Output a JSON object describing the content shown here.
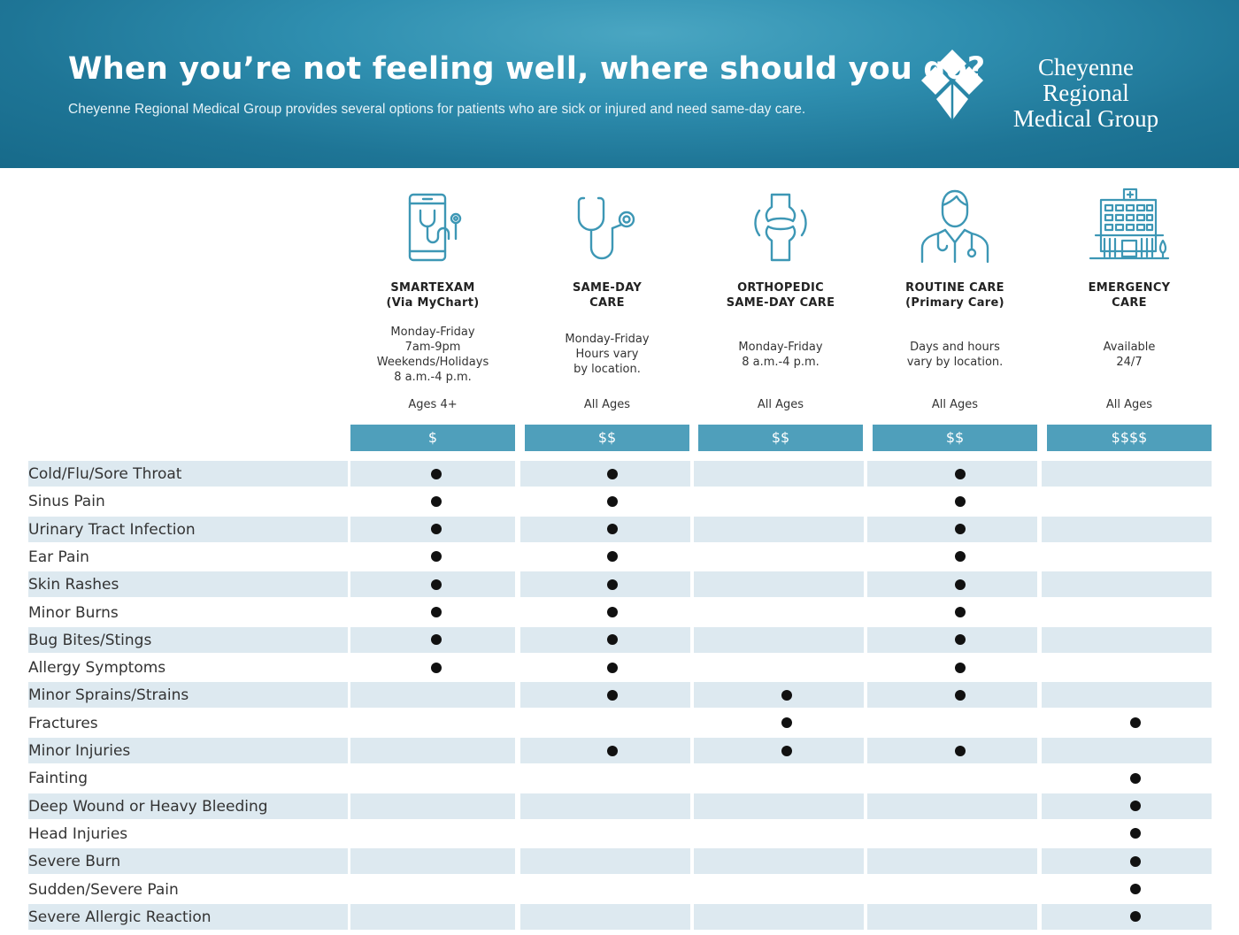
{
  "header": {
    "title": "When you’re not feeling well, where should you go?",
    "subtitle": "Cheyenne Regional Medical Group provides several options for patients who are sick or injured and need same-day care.",
    "logo_line1": "Cheyenne Regional",
    "logo_line2": "Medical Group"
  },
  "columns": [
    {
      "icon": "smartphone-stethoscope-icon",
      "name_line1": "SMARTEXAM",
      "name_line2": "(Via MyChart)",
      "hours": [
        "Monday-Friday",
        "7am-9pm",
        "Weekends/Holidays",
        "8 a.m.-4 p.m."
      ],
      "ages": "Ages 4+",
      "cost": "$"
    },
    {
      "icon": "stethoscope-icon",
      "name_line1": "SAME-DAY",
      "name_line2": "CARE",
      "hours": [
        "Monday-Friday",
        "Hours vary",
        "by location."
      ],
      "ages": "All Ages",
      "cost": "$$"
    },
    {
      "icon": "knee-joint-icon",
      "name_line1": "ORTHOPEDIC",
      "name_line2": "SAME-DAY CARE",
      "hours": [
        "Monday-Friday",
        "8 a.m.-4 p.m."
      ],
      "ages": "All Ages",
      "cost": "$$"
    },
    {
      "icon": "doctor-icon",
      "name_line1": "ROUTINE CARE",
      "name_line2": "(Primary Care)",
      "hours": [
        "Days and hours",
        "vary by location."
      ],
      "ages": "All Ages",
      "cost": "$$"
    },
    {
      "icon": "hospital-icon",
      "name_line1": "EMERGENCY",
      "name_line2": "CARE",
      "hours": [
        "Available",
        "24/7"
      ],
      "ages": "All Ages",
      "cost": "$$$$"
    }
  ],
  "conditions": [
    {
      "label": "Cold/Flu/Sore Throat",
      "marks": [
        true,
        true,
        false,
        true,
        false
      ]
    },
    {
      "label": "Sinus Pain",
      "marks": [
        true,
        true,
        false,
        true,
        false
      ]
    },
    {
      "label": "Urinary Tract Infection",
      "marks": [
        true,
        true,
        false,
        true,
        false
      ]
    },
    {
      "label": "Ear Pain",
      "marks": [
        true,
        true,
        false,
        true,
        false
      ]
    },
    {
      "label": "Skin Rashes",
      "marks": [
        true,
        true,
        false,
        true,
        false
      ]
    },
    {
      "label": "Minor Burns",
      "marks": [
        true,
        true,
        false,
        true,
        false
      ]
    },
    {
      "label": "Bug Bites/Stings",
      "marks": [
        true,
        true,
        false,
        true,
        false
      ]
    },
    {
      "label": "Allergy Symptoms",
      "marks": [
        true,
        true,
        false,
        true,
        false
      ]
    },
    {
      "label": "Minor Sprains/Strains",
      "marks": [
        false,
        true,
        true,
        true,
        false
      ]
    },
    {
      "label": "Fractures",
      "marks": [
        false,
        false,
        true,
        false,
        true
      ]
    },
    {
      "label": "Minor Injuries",
      "marks": [
        false,
        true,
        true,
        true,
        false
      ]
    },
    {
      "label": "Fainting",
      "marks": [
        false,
        false,
        false,
        false,
        true
      ]
    },
    {
      "label": "Deep Wound or Heavy Bleeding",
      "marks": [
        false,
        false,
        false,
        false,
        true
      ]
    },
    {
      "label": "Head Injuries",
      "marks": [
        false,
        false,
        false,
        false,
        true
      ]
    },
    {
      "label": "Severe Burn",
      "marks": [
        false,
        false,
        false,
        false,
        true
      ]
    },
    {
      "label": "Sudden/Severe Pain",
      "marks": [
        false,
        false,
        false,
        false,
        true
      ]
    },
    {
      "label": "Severe Allergic Reaction",
      "marks": [
        false,
        false,
        false,
        false,
        true
      ]
    }
  ],
  "colors": {
    "header_blue": "#1e7596",
    "icon_teal": "#3d97b5",
    "cost_bar": "#4f9fbb",
    "row_stripe": "#dde9f0",
    "dot": "#111111"
  }
}
